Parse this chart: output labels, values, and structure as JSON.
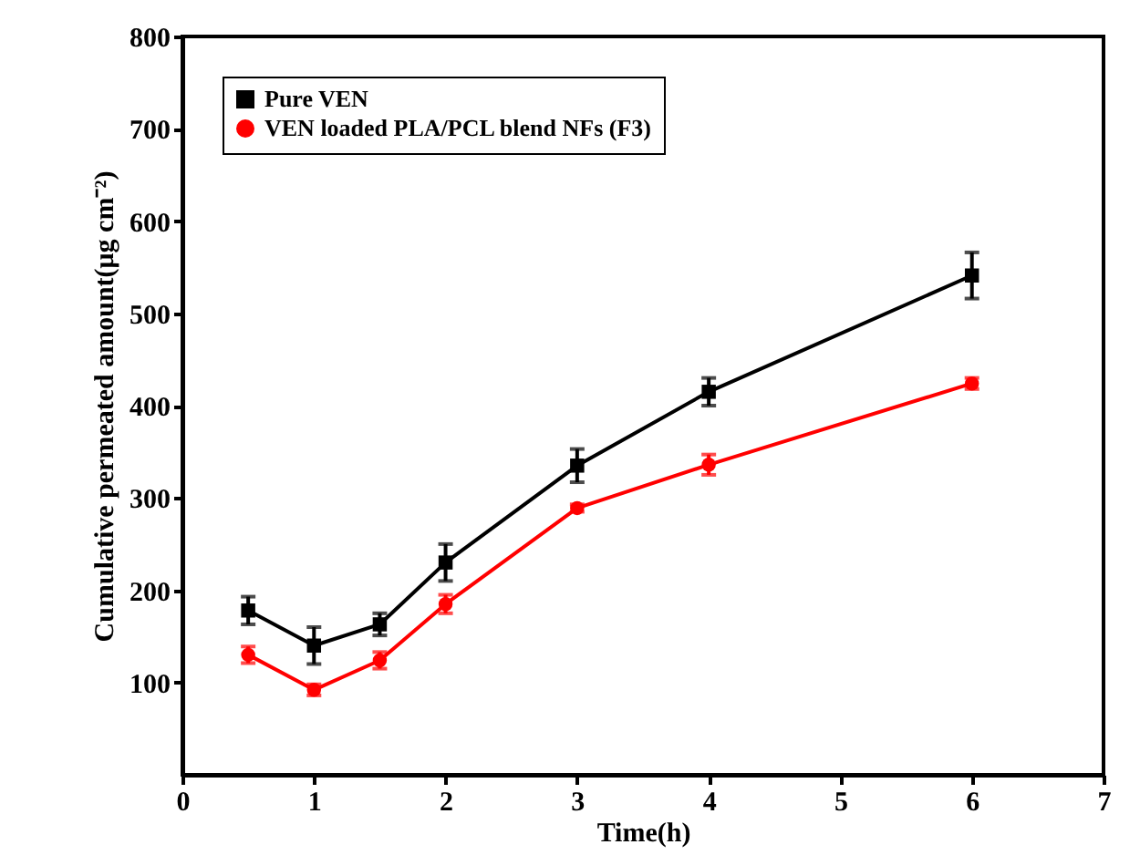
{
  "chart_data": {
    "type": "line",
    "xlabel": "Time(h)",
    "ylabel": "Cumulative permeated amount(μg cm⁻²)",
    "x": [
      0.5,
      1,
      1.5,
      2,
      3,
      4,
      6
    ],
    "series": [
      {
        "name": "Pure VEN",
        "color": "#000000",
        "marker": "square",
        "values": [
          178,
          140,
          163,
          230,
          335,
          415,
          541
        ],
        "errors": [
          15,
          20,
          12,
          20,
          18,
          15,
          25
        ]
      },
      {
        "name": "VEN loaded PLA/PCL blend NFs (F3)",
        "color": "#ff0000",
        "marker": "circle",
        "values": [
          130,
          92,
          124,
          185,
          289,
          336,
          424
        ],
        "errors": [
          9,
          6,
          9,
          10,
          4,
          11,
          6
        ]
      }
    ],
    "xlim": [
      0,
      7
    ],
    "xticks": [
      0,
      1,
      2,
      3,
      4,
      5,
      6,
      7
    ],
    "ylim": [
      0,
      800
    ],
    "yticks": [
      100,
      200,
      300,
      400,
      500,
      600,
      700,
      800
    ],
    "legend": "top left",
    "grid": false
  }
}
